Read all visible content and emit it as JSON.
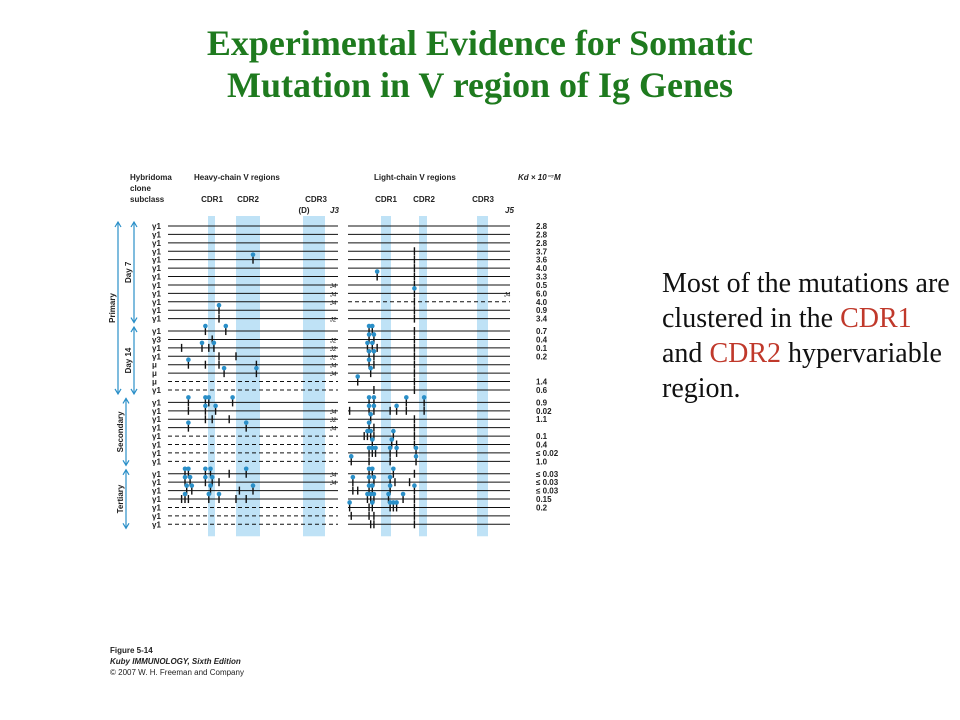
{
  "title": {
    "line1": "Experimental Evidence for Somatic",
    "line2": "Mutation in V region of Ig Genes"
  },
  "side_text": {
    "part1": "Most of the mutations are clustered in the ",
    "cdr1": "CDR1",
    "and": " and ",
    "cdr2": "CDR2",
    "part2": " hypervariable region."
  },
  "colors": {
    "title": "#1e7a1e",
    "highlight": "#c0392b",
    "band": "#bfe2f6",
    "mutation": "#2a8fc8"
  },
  "figure": {
    "header": {
      "hybridoma": "Hybridoma",
      "clone": "clone",
      "subclass": "subclass",
      "heavy": "Heavy-chain V regions",
      "light": "Light-chain V regions",
      "kd": "Kd × 10⁻⁷M",
      "h_cdr1": "CDR1",
      "h_cdr2": "CDR2",
      "h_cdr3": "CDR3",
      "h_d": "(D)",
      "h_j3": "J3",
      "l_cdr1": "CDR1",
      "l_cdr2": "CDR2",
      "l_cdr3": "CDR3",
      "l_j5": "J5"
    },
    "groups": {
      "primary": "Primary",
      "day7": "Day 7",
      "day14": "Day 14",
      "secondary": "Secondary",
      "tertiary": "Tertiary"
    },
    "caption": {
      "fig": "Figure 5-14",
      "book": "Kuby IMMUNOLOGY, Sixth Edition",
      "copy": "© 2007 W. H. Freeman and Company"
    },
    "rows": [
      {
        "s": "γ1",
        "kd": "2.8",
        "hd": false,
        "ld": false,
        "hj": "",
        "lj": "",
        "hm": [],
        "lm": []
      },
      {
        "s": "γ1",
        "kd": "2.8",
        "hd": false,
        "ld": false,
        "hj": "",
        "lj": "",
        "hm": [],
        "lm": []
      },
      {
        "s": "γ1",
        "kd": "2.8",
        "hd": false,
        "ld": false,
        "hj": "",
        "lj": "",
        "hm": [],
        "lm": []
      },
      {
        "s": "γ1",
        "kd": "3.7",
        "hd": false,
        "ld": false,
        "hj": "",
        "lj": "",
        "hm": [],
        "lm": [
          [
            0.41,
            0
          ]
        ]
      },
      {
        "s": "γ1",
        "kd": "3.6",
        "hd": false,
        "ld": false,
        "hj": "",
        "lj": "",
        "hm": [
          [
            0.5,
            1
          ]
        ],
        "lm": [
          [
            0.41,
            0
          ]
        ]
      },
      {
        "s": "γ1",
        "kd": "4.0",
        "hd": false,
        "ld": false,
        "hj": "",
        "lj": "",
        "hm": [],
        "lm": [
          [
            0.41,
            0
          ]
        ]
      },
      {
        "s": "γ1",
        "kd": "3.3",
        "hd": false,
        "ld": false,
        "hj": "",
        "lj": "",
        "hm": [],
        "lm": [
          [
            0.18,
            1
          ],
          [
            0.41,
            0
          ]
        ]
      },
      {
        "s": "γ1",
        "kd": "0.5",
        "hd": false,
        "ld": false,
        "hj": "J4",
        "lj": "",
        "hm": [],
        "lm": [
          [
            0.41,
            0
          ]
        ]
      },
      {
        "s": "γ1",
        "kd": "6.0",
        "hd": false,
        "ld": false,
        "hj": "J4",
        "lj": "J4",
        "hm": [],
        "lm": [
          [
            0.41,
            1
          ]
        ]
      },
      {
        "s": "γ1",
        "kd": "4.0",
        "hd": false,
        "ld": true,
        "hj": "J4",
        "lj": "",
        "hm": [],
        "lm": [
          [
            0.41,
            0
          ]
        ]
      },
      {
        "s": "γ1",
        "kd": "0.9",
        "hd": false,
        "ld": false,
        "hj": "",
        "lj": "",
        "hm": [
          [
            0.3,
            1
          ]
        ],
        "lm": [
          [
            0.41,
            0
          ]
        ]
      },
      {
        "s": "γ1",
        "kd": "3.4",
        "hd": false,
        "ld": false,
        "hj": "J2",
        "lj": "",
        "hm": [
          [
            0.3,
            0
          ]
        ],
        "lm": [
          [
            0.41,
            0
          ]
        ]
      },
      {
        "s": "γ1",
        "kd": "0.7",
        "hd": false,
        "ld": false,
        "hj": "",
        "lj": "",
        "hm": [
          [
            0.22,
            1
          ],
          [
            0.34,
            1
          ]
        ],
        "lm": [
          [
            0.13,
            1
          ],
          [
            0.15,
            1
          ],
          [
            0.41,
            0
          ]
        ]
      },
      {
        "s": "γ3",
        "kd": "0.4",
        "hd": false,
        "ld": false,
        "hj": "J2",
        "lj": "",
        "hm": [
          [
            0.26,
            0
          ]
        ],
        "lm": [
          [
            0.13,
            1
          ],
          [
            0.16,
            1
          ],
          [
            0.41,
            0
          ]
        ]
      },
      {
        "s": "γ1",
        "kd": "0.1",
        "hd": false,
        "ld": false,
        "hj": "J2",
        "lj": "",
        "hm": [
          [
            0.08,
            0
          ],
          [
            0.2,
            1
          ],
          [
            0.24,
            0
          ],
          [
            0.27,
            1
          ]
        ],
        "lm": [
          [
            0.12,
            1
          ],
          [
            0.15,
            1
          ],
          [
            0.18,
            0
          ],
          [
            0.41,
            0
          ]
        ]
      },
      {
        "s": "γ1",
        "kd": "0.2",
        "hd": false,
        "ld": false,
        "hj": "J2",
        "lj": "",
        "hm": [
          [
            0.3,
            0
          ],
          [
            0.4,
            0
          ]
        ],
        "lm": [
          [
            0.13,
            1
          ],
          [
            0.16,
            1
          ],
          [
            0.41,
            0
          ]
        ]
      },
      {
        "s": "μ",
        "kd": "",
        "hd": false,
        "ld": false,
        "hj": "J4",
        "lj": "",
        "hm": [
          [
            0.12,
            1
          ],
          [
            0.22,
            0
          ],
          [
            0.3,
            0
          ],
          [
            0.52,
            0
          ]
        ],
        "lm": [
          [
            0.13,
            1
          ],
          [
            0.16,
            0
          ],
          [
            0.41,
            0
          ]
        ]
      },
      {
        "s": "μ",
        "kd": "",
        "hd": false,
        "ld": false,
        "hj": "J4",
        "lj": "",
        "hm": [
          [
            0.33,
            1
          ],
          [
            0.52,
            1
          ]
        ],
        "lm": [
          [
            0.14,
            1
          ],
          [
            0.41,
            0
          ]
        ]
      },
      {
        "s": "μ",
        "kd": "1.4",
        "hd": true,
        "ld": false,
        "hj": "",
        "lj": "",
        "hm": [],
        "lm": [
          [
            0.06,
            1
          ],
          [
            0.41,
            0
          ]
        ]
      },
      {
        "s": "γ1",
        "kd": "0.6",
        "hd": true,
        "ld": false,
        "hj": "",
        "lj": "",
        "hm": [],
        "lm": [
          [
            0.16,
            0
          ],
          [
            0.41,
            0
          ]
        ]
      },
      {
        "s": "γ1",
        "kd": "0.9",
        "hd": false,
        "ld": false,
        "hj": "",
        "lj": "",
        "hm": [
          [
            0.12,
            1
          ],
          [
            0.22,
            1
          ],
          [
            0.24,
            1
          ],
          [
            0.38,
            1
          ]
        ],
        "lm": [
          [
            0.13,
            1
          ],
          [
            0.16,
            1
          ],
          [
            0.36,
            1
          ],
          [
            0.47,
            1
          ]
        ]
      },
      {
        "s": "γ1",
        "kd": "0.02",
        "hd": false,
        "ld": false,
        "hj": "J4",
        "lj": "",
        "hm": [
          [
            0.12,
            0
          ],
          [
            0.22,
            1
          ],
          [
            0.28,
            1
          ]
        ],
        "lm": [
          [
            0.01,
            0
          ],
          [
            0.13,
            1
          ],
          [
            0.16,
            1
          ],
          [
            0.26,
            0
          ],
          [
            0.3,
            1
          ],
          [
            0.36,
            0
          ],
          [
            0.47,
            0
          ]
        ]
      },
      {
        "s": "γ1",
        "kd": "1.1",
        "hd": false,
        "ld": false,
        "hj": "J2",
        "lj": "",
        "hm": [
          [
            0.22,
            0
          ],
          [
            0.26,
            0
          ],
          [
            0.36,
            0
          ]
        ],
        "lm": [
          [
            0.14,
            1
          ],
          [
            0.41,
            0
          ]
        ]
      },
      {
        "s": "γ1",
        "kd": "",
        "hd": false,
        "ld": false,
        "hj": "J4",
        "lj": "",
        "hm": [
          [
            0.12,
            1
          ],
          [
            0.46,
            1
          ]
        ],
        "lm": [
          [
            0.13,
            1
          ],
          [
            0.16,
            0
          ],
          [
            0.41,
            0
          ]
        ]
      },
      {
        "s": "γ1",
        "kd": "0.1",
        "hd": true,
        "ld": false,
        "hj": "",
        "lj": "",
        "hm": [],
        "lm": [
          [
            0.1,
            0
          ],
          [
            0.12,
            1
          ],
          [
            0.14,
            1
          ],
          [
            0.16,
            0
          ],
          [
            0.28,
            1
          ],
          [
            0.41,
            0
          ]
        ]
      },
      {
        "s": "γ1",
        "kd": "0.4",
        "hd": true,
        "ld": false,
        "hj": "",
        "lj": "",
        "hm": [],
        "lm": [
          [
            0.15,
            1
          ],
          [
            0.27,
            1
          ],
          [
            0.3,
            0
          ],
          [
            0.41,
            0
          ]
        ]
      },
      {
        "s": "γ1",
        "kd": "≤ 0.02",
        "hd": true,
        "ld": false,
        "hj": "",
        "lj": "",
        "hm": [],
        "lm": [
          [
            0.13,
            1
          ],
          [
            0.15,
            1
          ],
          [
            0.17,
            1
          ],
          [
            0.26,
            1
          ],
          [
            0.3,
            1
          ],
          [
            0.42,
            1
          ]
        ]
      },
      {
        "s": "γ1",
        "kd": "1.0",
        "hd": true,
        "ld": false,
        "hj": "",
        "lj": "",
        "hm": [],
        "lm": [
          [
            0.02,
            1
          ],
          [
            0.13,
            0
          ],
          [
            0.26,
            0
          ],
          [
            0.42,
            1
          ]
        ]
      },
      {
        "s": "γ1",
        "kd": "≤ 0.03",
        "hd": false,
        "ld": false,
        "hj": "J4",
        "lj": "",
        "hm": [
          [
            0.1,
            1
          ],
          [
            0.12,
            1
          ],
          [
            0.22,
            1
          ],
          [
            0.25,
            1
          ],
          [
            0.36,
            0
          ],
          [
            0.46,
            1
          ]
        ],
        "lm": [
          [
            0.13,
            1
          ],
          [
            0.15,
            1
          ],
          [
            0.28,
            1
          ],
          [
            0.41,
            0
          ]
        ]
      },
      {
        "s": "γ1",
        "kd": "≤ 0.03",
        "hd": false,
        "ld": false,
        "hj": "J4",
        "lj": "",
        "hm": [
          [
            0.1,
            1
          ],
          [
            0.13,
            1
          ],
          [
            0.22,
            1
          ],
          [
            0.26,
            1
          ],
          [
            0.3,
            0
          ]
        ],
        "lm": [
          [
            0.03,
            1
          ],
          [
            0.13,
            1
          ],
          [
            0.16,
            1
          ],
          [
            0.26,
            1
          ],
          [
            0.29,
            0
          ],
          [
            0.38,
            0
          ]
        ]
      },
      {
        "s": "γ1",
        "kd": "≤ 0.03",
        "hd": false,
        "ld": false,
        "hj": "",
        "lj": "",
        "hm": [
          [
            0.11,
            1
          ],
          [
            0.14,
            1
          ],
          [
            0.25,
            1
          ],
          [
            0.42,
            0
          ],
          [
            0.5,
            1
          ]
        ],
        "lm": [
          [
            0.03,
            0
          ],
          [
            0.06,
            0
          ],
          [
            0.13,
            1
          ],
          [
            0.15,
            1
          ],
          [
            0.26,
            1
          ],
          [
            0.41,
            1
          ]
        ]
      },
      {
        "s": "γ1",
        "kd": "0.15",
        "hd": false,
        "ld": false,
        "hj": "",
        "lj": "",
        "hm": [
          [
            0.08,
            0
          ],
          [
            0.1,
            1
          ],
          [
            0.12,
            0
          ],
          [
            0.24,
            1
          ],
          [
            0.3,
            1
          ],
          [
            0.4,
            0
          ],
          [
            0.46,
            0
          ]
        ],
        "lm": [
          [
            0.12,
            1
          ],
          [
            0.14,
            1
          ],
          [
            0.16,
            1
          ],
          [
            0.25,
            1
          ],
          [
            0.34,
            1
          ],
          [
            0.41,
            0
          ]
        ]
      },
      {
        "s": "γ1",
        "kd": "0.2",
        "hd": true,
        "ld": false,
        "hj": "",
        "lj": "",
        "hm": [],
        "lm": [
          [
            0.01,
            1
          ],
          [
            0.13,
            0
          ],
          [
            0.15,
            1
          ],
          [
            0.26,
            1
          ],
          [
            0.28,
            1
          ],
          [
            0.3,
            1
          ],
          [
            0.41,
            0
          ]
        ]
      },
      {
        "s": "γ1",
        "kd": "",
        "hd": true,
        "ld": false,
        "hj": "",
        "lj": "",
        "hm": [],
        "lm": [
          [
            0.02,
            0
          ],
          [
            0.13,
            0
          ],
          [
            0.16,
            0
          ],
          [
            0.41,
            0
          ]
        ]
      },
      {
        "s": "γ1",
        "kd": "",
        "hd": true,
        "ld": false,
        "hj": "",
        "lj": "",
        "hm": [],
        "lm": [
          [
            0.14,
            0
          ],
          [
            0.16,
            0
          ],
          [
            0.41,
            0
          ]
        ]
      }
    ]
  }
}
